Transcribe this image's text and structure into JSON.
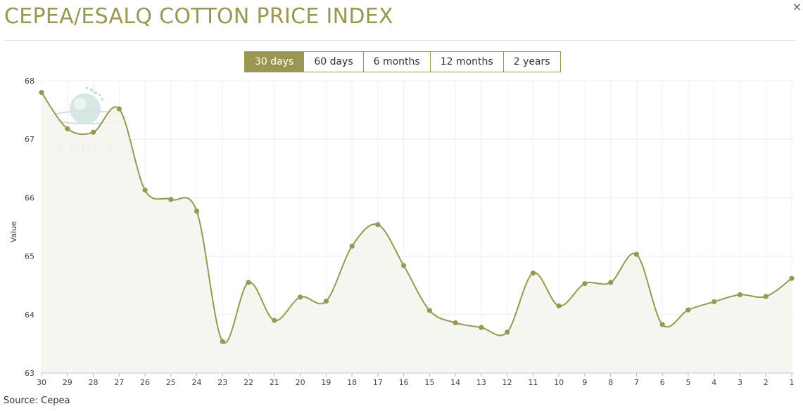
{
  "header": {
    "title": "CEPEA/ESALQ COTTON PRICE INDEX",
    "close_label": "×"
  },
  "tabs": [
    {
      "label": "30 days",
      "active": true
    },
    {
      "label": "60 days",
      "active": false
    },
    {
      "label": "6 months",
      "active": false
    },
    {
      "label": "12 months",
      "active": false
    },
    {
      "label": "2 years",
      "active": false
    }
  ],
  "watermark": {
    "text": "cepea"
  },
  "footer": {
    "source": "Source: Cepea"
  },
  "colors": {
    "accent": "#9a9752",
    "area_fill": "#f5f5ef",
    "grid": "#ececec"
  },
  "chart_data": {
    "type": "area",
    "title": "",
    "xlabel": "",
    "ylabel": "Value",
    "categories": [
      "30",
      "29",
      "28",
      "27",
      "26",
      "25",
      "24",
      "23",
      "22",
      "21",
      "20",
      "19",
      "18",
      "17",
      "16",
      "15",
      "14",
      "13",
      "12",
      "11",
      "10",
      "9",
      "8",
      "7",
      "6",
      "5",
      "4",
      "3",
      "2",
      "1"
    ],
    "series": [
      {
        "values": [
          67.8,
          67.18,
          67.12,
          67.52,
          66.13,
          65.97,
          65.77,
          63.54,
          64.55,
          63.9,
          64.3,
          64.23,
          65.17,
          65.54,
          64.84,
          64.07,
          63.86,
          63.78,
          63.7,
          64.71,
          64.15,
          64.53,
          64.55,
          65.03,
          63.83,
          64.08,
          64.22,
          64.34,
          64.31,
          64.62
        ]
      }
    ],
    "ylim": [
      63,
      68
    ],
    "yticks": [
      63,
      64,
      65,
      66,
      67,
      68
    ],
    "grid": true,
    "legend": "none"
  }
}
